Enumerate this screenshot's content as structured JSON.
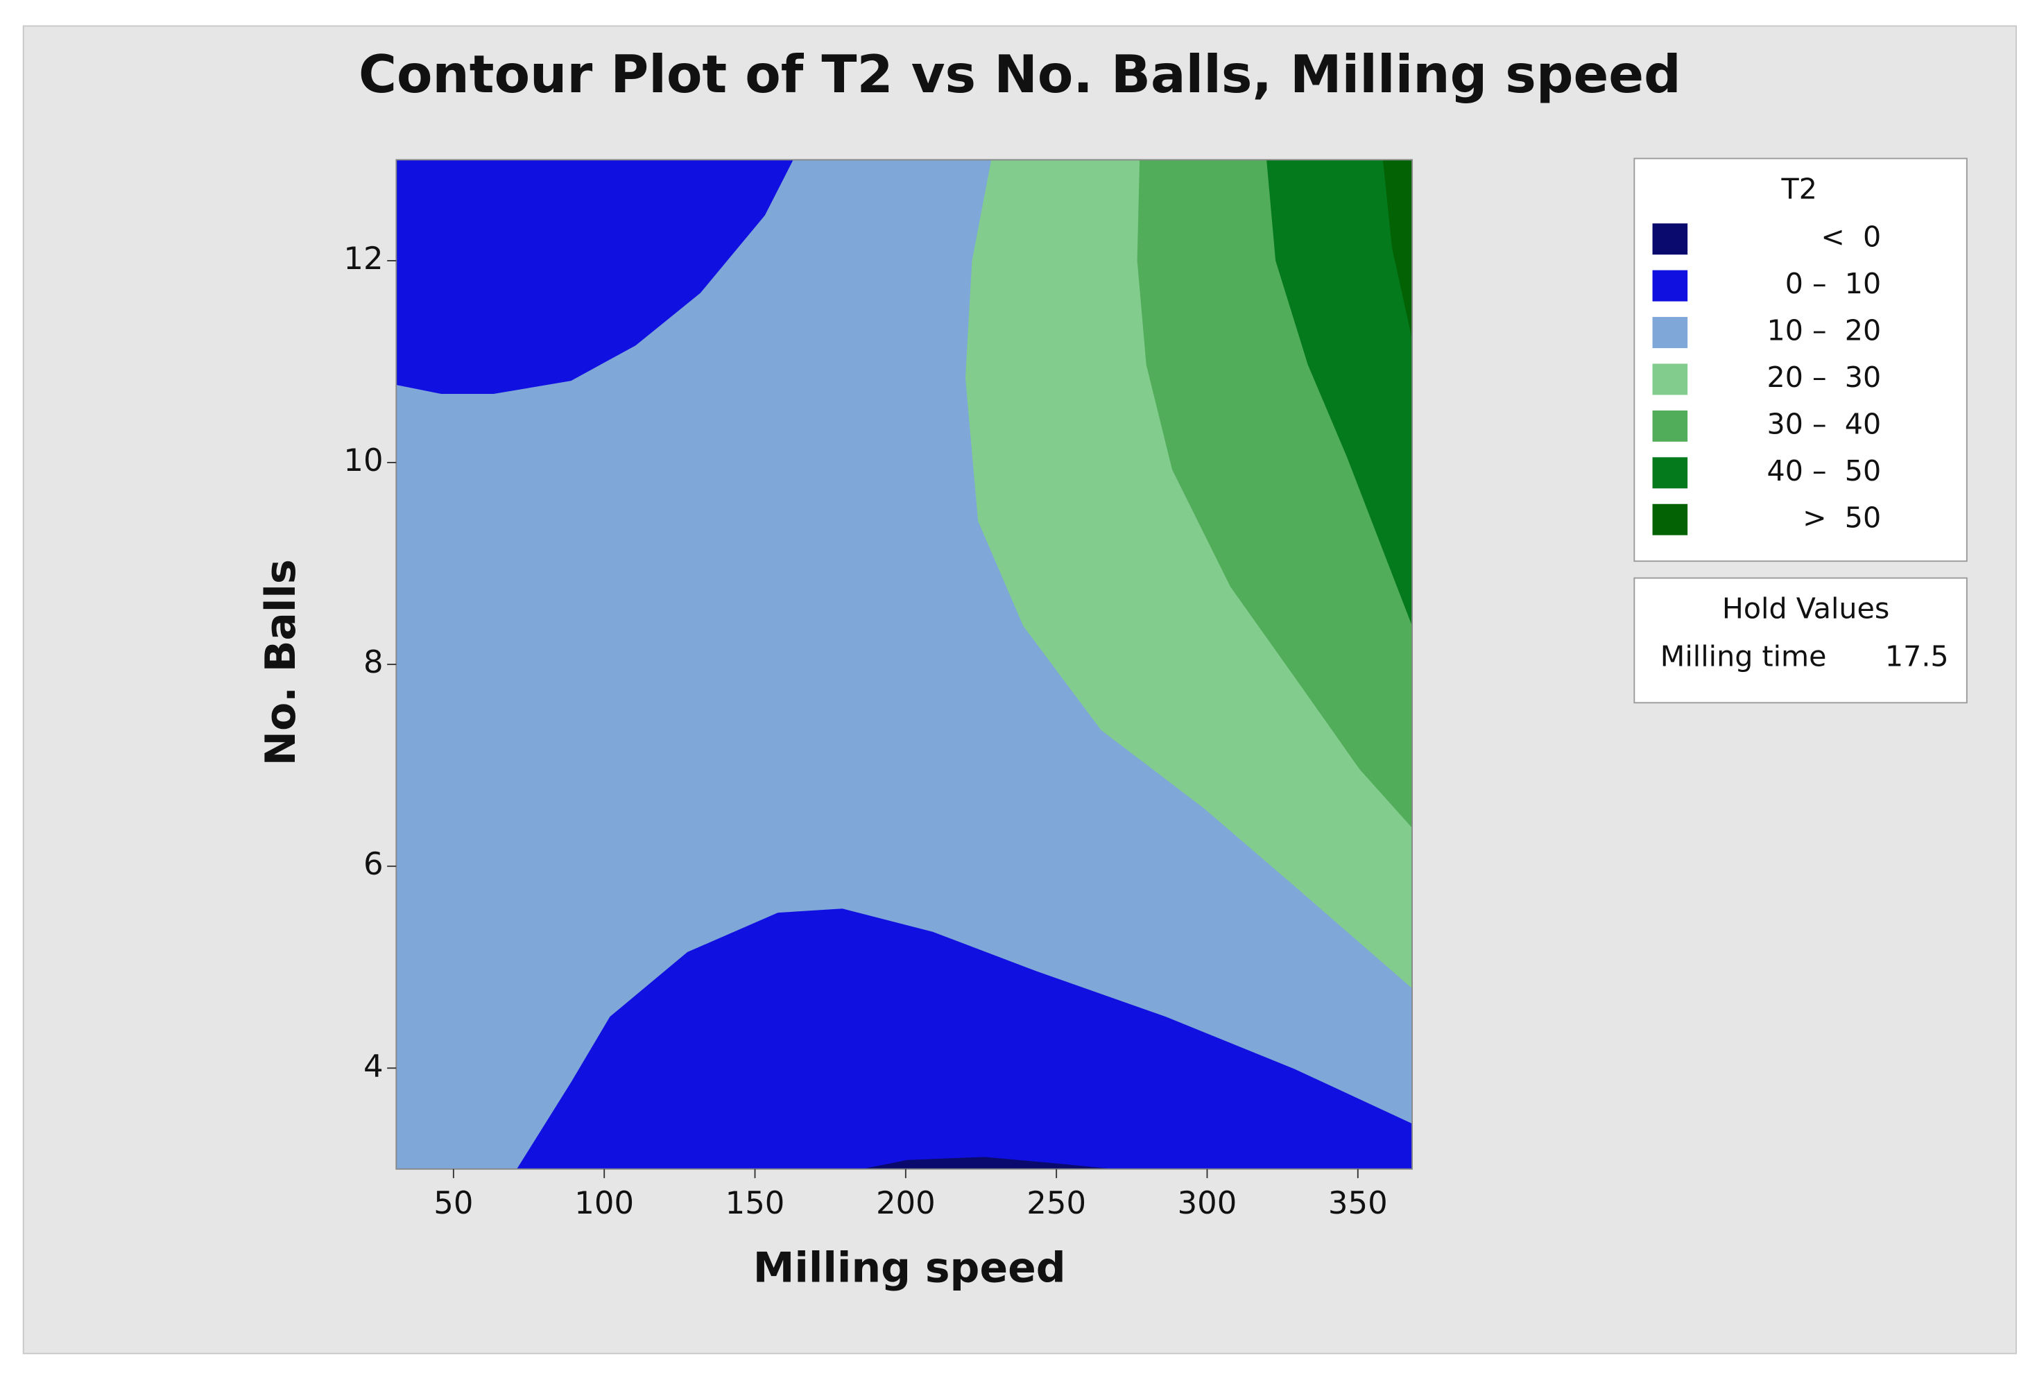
{
  "chart_data": {
    "type": "contour",
    "title": "Contour Plot of T2 vs No. Balls, Milling speed",
    "x_label": "Milling speed",
    "y_label": "No. Balls",
    "xlim": [
      31,
      368
    ],
    "ylim": [
      3,
      13
    ],
    "xticks": [
      50,
      100,
      150,
      200,
      250,
      300,
      350
    ],
    "yticks": [
      4,
      6,
      8,
      10,
      12
    ],
    "legend": {
      "title": "T2",
      "items": [
        {
          "label": "<  0",
          "color": "#0a0a6e"
        },
        {
          "label": "0 –  10",
          "color": "#1010e0"
        },
        {
          "label": "10 –  20",
          "color": "#7fa7d8"
        },
        {
          "label": "20 –  30",
          "color": "#82cc8e"
        },
        {
          "label": "30 –  40",
          "color": "#52ad5a"
        },
        {
          "label": "40 –  50",
          "color": "#047a1c"
        },
        {
          "label": ">  50",
          "color": "#036304"
        }
      ]
    },
    "hold_values": {
      "title": "Hold Values",
      "name": "Milling time",
      "value": 17.5
    },
    "regions": [
      {
        "color": "#7fa7d8",
        "x": [
          31,
          368,
          368,
          31
        ],
        "y": [
          3,
          3,
          13,
          13
        ]
      },
      {
        "color": "#1010e0",
        "x": [
          31,
          162.7,
          153.3,
          131.9,
          110.4,
          89,
          63.3,
          46,
          31
        ],
        "y": [
          13,
          13,
          12.45,
          11.68,
          11.16,
          10.81,
          10.68,
          10.68,
          10.77
        ]
      },
      {
        "color": "#1010e0",
        "x": [
          71,
          89,
          101.9,
          127.6,
          157.6,
          179,
          209,
          243.4,
          286.2,
          329.1,
          368,
          368
        ],
        "y": [
          3,
          3.86,
          4.51,
          5.15,
          5.54,
          5.58,
          5.35,
          4.96,
          4.51,
          3.99,
          3.45,
          3
        ]
      },
      {
        "color": "#0a0a6e",
        "x": [
          185.5,
          200.5,
          226.2,
          252,
          269
        ],
        "y": [
          3,
          3.09,
          3.12,
          3.05,
          3
        ]
      },
      {
        "color": "#82cc8e",
        "x": [
          228.4,
          222,
          219.8,
          224,
          239,
          264.8,
          299.1,
          329.1,
          368,
          368
        ],
        "y": [
          13,
          12,
          10.84,
          9.42,
          8.38,
          7.35,
          6.57,
          5.8,
          4.79,
          13
        ]
      },
      {
        "color": "#52ad5a",
        "x": [
          277.6,
          276.8,
          279.8,
          288.4,
          307.7,
          329.1,
          350.6,
          368,
          368
        ],
        "y": [
          13,
          12,
          10.97,
          9.93,
          8.77,
          7.87,
          6.96,
          6.38,
          13
        ]
      },
      {
        "color": "#047a1c",
        "x": [
          319.7,
          322.7,
          333.4,
          346.3,
          368,
          368
        ],
        "y": [
          13,
          12,
          10.97,
          10.06,
          8.38,
          13
        ]
      },
      {
        "color": "#036304",
        "x": [
          358.3,
          361.3,
          368,
          368
        ],
        "y": [
          13,
          12.13,
          11.22,
          13
        ]
      }
    ]
  }
}
